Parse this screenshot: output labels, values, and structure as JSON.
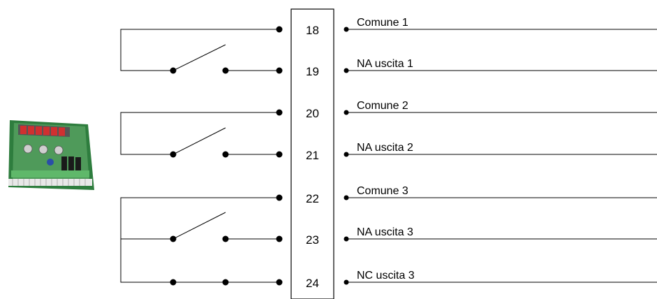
{
  "terminals": [
    {
      "number": "18",
      "label": "Comune 1"
    },
    {
      "number": "19",
      "label": "NA uscita 1"
    },
    {
      "number": "20",
      "label": "Comune 2"
    },
    {
      "number": "21",
      "label": "NA uscita 2"
    },
    {
      "number": "22",
      "label": "Comune 3"
    },
    {
      "number": "23",
      "label": "NA uscita 3"
    },
    {
      "number": "24",
      "label": "NC uscita 3"
    }
  ],
  "device_image": "panel-meter-module",
  "colors": {
    "line": "#000000",
    "device_green": "#3c8a4a",
    "device_display": "#b02020"
  }
}
